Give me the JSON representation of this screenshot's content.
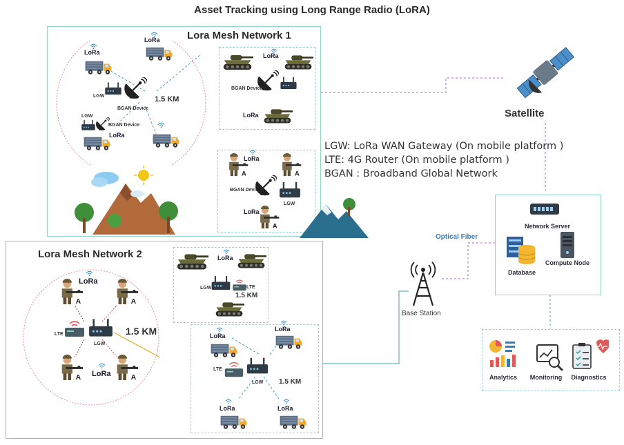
{
  "title": "Asset Tracking using Long Range Radio (LoRA)",
  "network1": {
    "title": "Lora Mesh Network  1",
    "range": "1.5 KM",
    "lora_label": "LoRa",
    "lgw_label": "LGW",
    "bgan_label": "BGAN Device"
  },
  "network2": {
    "title": "Lora Mesh Network  2",
    "range": "1.5 KM",
    "lora_label": "LoRa",
    "lgw_label": "LGW",
    "lte_label": "LTE"
  },
  "satellite": {
    "label": "Satellite"
  },
  "legend": [
    "LGW: LoRa WAN Gateway (On mobile platform )",
    "LTE: 4G Router  (On mobile platform )",
    "BGAN : Broadband Global Network"
  ],
  "optical_fiber": "Optical Fiber",
  "base_station": "Base Station",
  "server": {
    "network_server": "Network Server",
    "database": "Database",
    "compute_node": "Compute Node"
  },
  "apps": {
    "analytics": "Analytics",
    "monitoring": "Monitoring",
    "diagnostics": "Diagnostics"
  },
  "colors": {
    "teal": "#3aa7a0",
    "purple": "#8e6fd0",
    "truck": "#5a6d86",
    "tank": "#6b6b3a",
    "pink": "#e78aa6"
  }
}
